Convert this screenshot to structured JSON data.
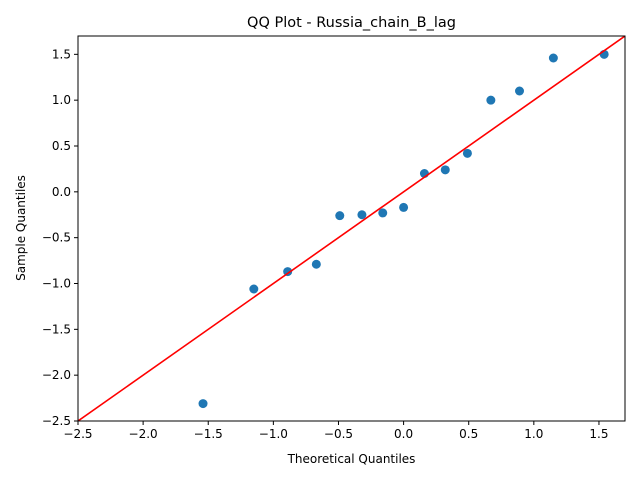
{
  "chart_data": {
    "type": "scatter",
    "title": "QQ Plot - Russia_chain_B_lag",
    "xlabel": "Theoretical Quantiles",
    "ylabel": "Sample Quantiles",
    "xlim": [
      -2.5,
      1.7
    ],
    "ylim": [
      -2.5,
      1.7
    ],
    "xticks": [
      -2.5,
      -2.0,
      -1.5,
      -1.0,
      -0.5,
      0.0,
      0.5,
      1.0,
      1.5
    ],
    "xtick_labels": [
      "−2.5",
      "−2.0",
      "−1.5",
      "−1.0",
      "−0.5",
      "0.0",
      "0.5",
      "1.0",
      "1.5"
    ],
    "yticks": [
      -2.5,
      -2.0,
      -1.5,
      -1.0,
      -0.5,
      0.0,
      0.5,
      1.0,
      1.5
    ],
    "ytick_labels": [
      "−2.5",
      "−2.0",
      "−1.5",
      "−1.0",
      "−0.5",
      "0.0",
      "0.5",
      "1.0",
      "1.5"
    ],
    "points": [
      {
        "x": -1.54,
        "y": -2.31
      },
      {
        "x": -1.15,
        "y": -1.06
      },
      {
        "x": -0.89,
        "y": -0.87
      },
      {
        "x": -0.67,
        "y": -0.79
      },
      {
        "x": -0.49,
        "y": -0.26
      },
      {
        "x": -0.32,
        "y": -0.25
      },
      {
        "x": -0.16,
        "y": -0.23
      },
      {
        "x": 0.0,
        "y": -0.17
      },
      {
        "x": 0.16,
        "y": 0.2
      },
      {
        "x": 0.32,
        "y": 0.24
      },
      {
        "x": 0.49,
        "y": 0.42
      },
      {
        "x": 0.67,
        "y": 1.0
      },
      {
        "x": 0.89,
        "y": 1.1
      },
      {
        "x": 1.15,
        "y": 1.46
      },
      {
        "x": 1.54,
        "y": 1.5
      }
    ],
    "reference_line": {
      "x": [
        -2.5,
        1.7
      ],
      "y": [
        -2.5,
        1.7
      ],
      "color": "#ff0000"
    },
    "point_color": "#1f77b4",
    "grid": false,
    "legend": false
  }
}
